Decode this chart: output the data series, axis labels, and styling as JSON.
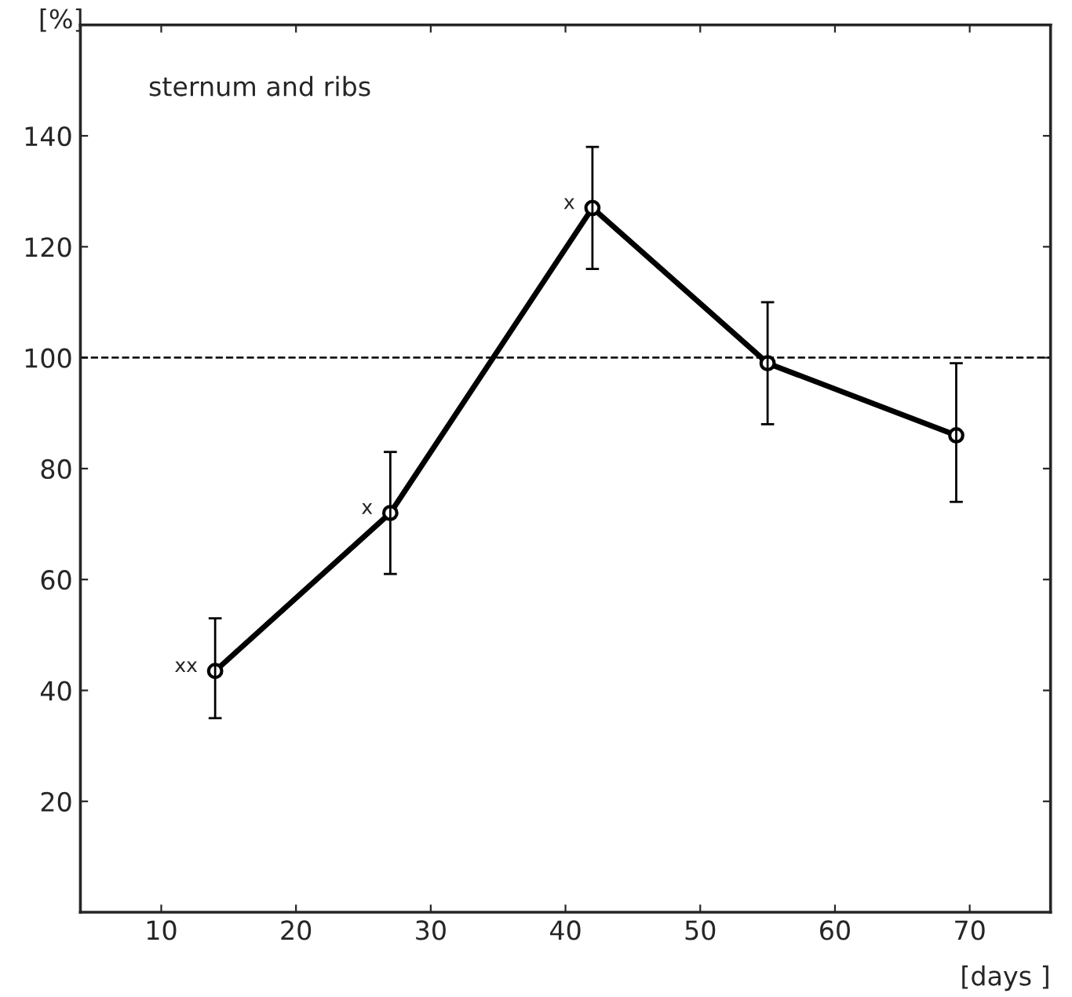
{
  "chart_data": {
    "type": "line",
    "xlabel": "[days ]",
    "ylabel": "[%]",
    "x": [
      14,
      27,
      42,
      55,
      69
    ],
    "series": [
      {
        "color": "#000000",
        "values": [
          43.5,
          72,
          127,
          99,
          86
        ],
        "errors": [
          [
            35,
            53
          ],
          [
            61,
            83
          ],
          [
            116,
            138
          ],
          [
            88,
            110
          ],
          [
            74,
            99
          ]
        ]
      }
    ],
    "xlim": [
      4,
      76
    ],
    "xticks": [
      10,
      20,
      30,
      40,
      50,
      60,
      70
    ],
    "ylim": [
      0,
      160
    ],
    "yticks": [
      20,
      40,
      60,
      80,
      100,
      120,
      140
    ],
    "ref_lines": [
      {
        "axis": "y",
        "value": 100,
        "line_style": "dashed",
        "color": "#000000"
      }
    ],
    "annotations": [
      "sternum and ribs",
      {
        "text": "xx",
        "x": 14,
        "y": 43.5
      },
      {
        "text": "x",
        "x": 27,
        "y": 72
      },
      {
        "text": "x",
        "x": 42,
        "y": 127
      }
    ],
    "marker": "circle",
    "line_style": "solid",
    "grid": false,
    "legend": false
  }
}
